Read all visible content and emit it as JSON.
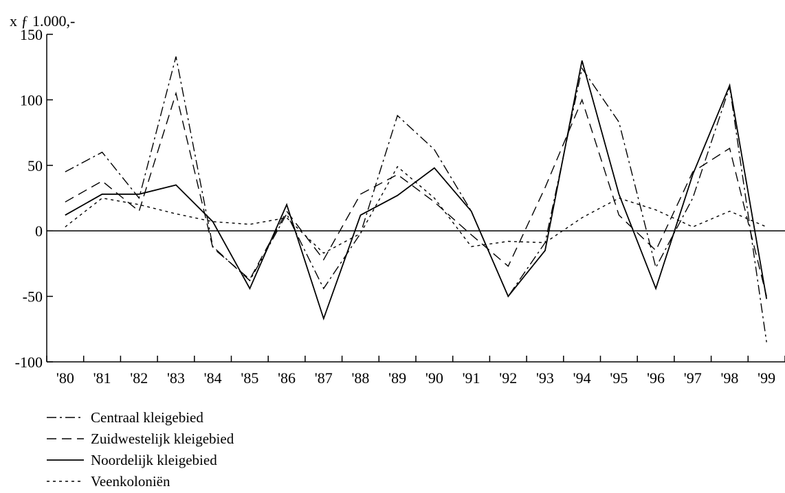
{
  "chart_data": {
    "type": "line",
    "title": "",
    "ylabel": "x ƒ 1.000,-",
    "xlabel": "",
    "categories": [
      "'80",
      "'81",
      "'82",
      "'83",
      "'84",
      "'85",
      "'86",
      "'87",
      "'88",
      "'89",
      "'90",
      "'91",
      "'92",
      "'93",
      "'94",
      "'95",
      "'96",
      "'97",
      "'98",
      "'99"
    ],
    "yticks": [
      "150",
      "100",
      "50",
      "0",
      "-50",
      "-100"
    ],
    "ytick_values": [
      150,
      100,
      50,
      0,
      -50,
      -100
    ],
    "ylim": [
      -100,
      150
    ],
    "grid": false,
    "legend_position": "bottom-left",
    "series": [
      {
        "name": "Centraal kleigebied",
        "dash": "dashdot",
        "values": [
          45,
          60,
          25,
          133,
          -12,
          -38,
          13,
          -44,
          -2,
          88,
          62,
          15,
          -50,
          -9,
          124,
          83,
          -28,
          25,
          110,
          -85
        ]
      },
      {
        "name": "Zuidwestelijk kleigebied",
        "dash": "dashed",
        "values": [
          22,
          38,
          15,
          105,
          -13,
          -37,
          15,
          -22,
          28,
          43,
          22,
          -3,
          -27,
          33,
          100,
          12,
          -15,
          45,
          63,
          -50
        ]
      },
      {
        "name": "Noordelijk kleigebied",
        "dash": "solid",
        "values": [
          12,
          28,
          28,
          35,
          7,
          -44,
          20,
          -67,
          12,
          27,
          48,
          15,
          -50,
          -15,
          130,
          28,
          -44,
          43,
          111,
          -52
        ]
      },
      {
        "name": "Veenkoloniën",
        "dash": "dotted",
        "values": [
          3,
          25,
          20,
          13,
          7,
          5,
          10,
          -17,
          -2,
          49,
          25,
          -12,
          -8,
          -9,
          10,
          25,
          16,
          3,
          15,
          3
        ]
      }
    ]
  }
}
